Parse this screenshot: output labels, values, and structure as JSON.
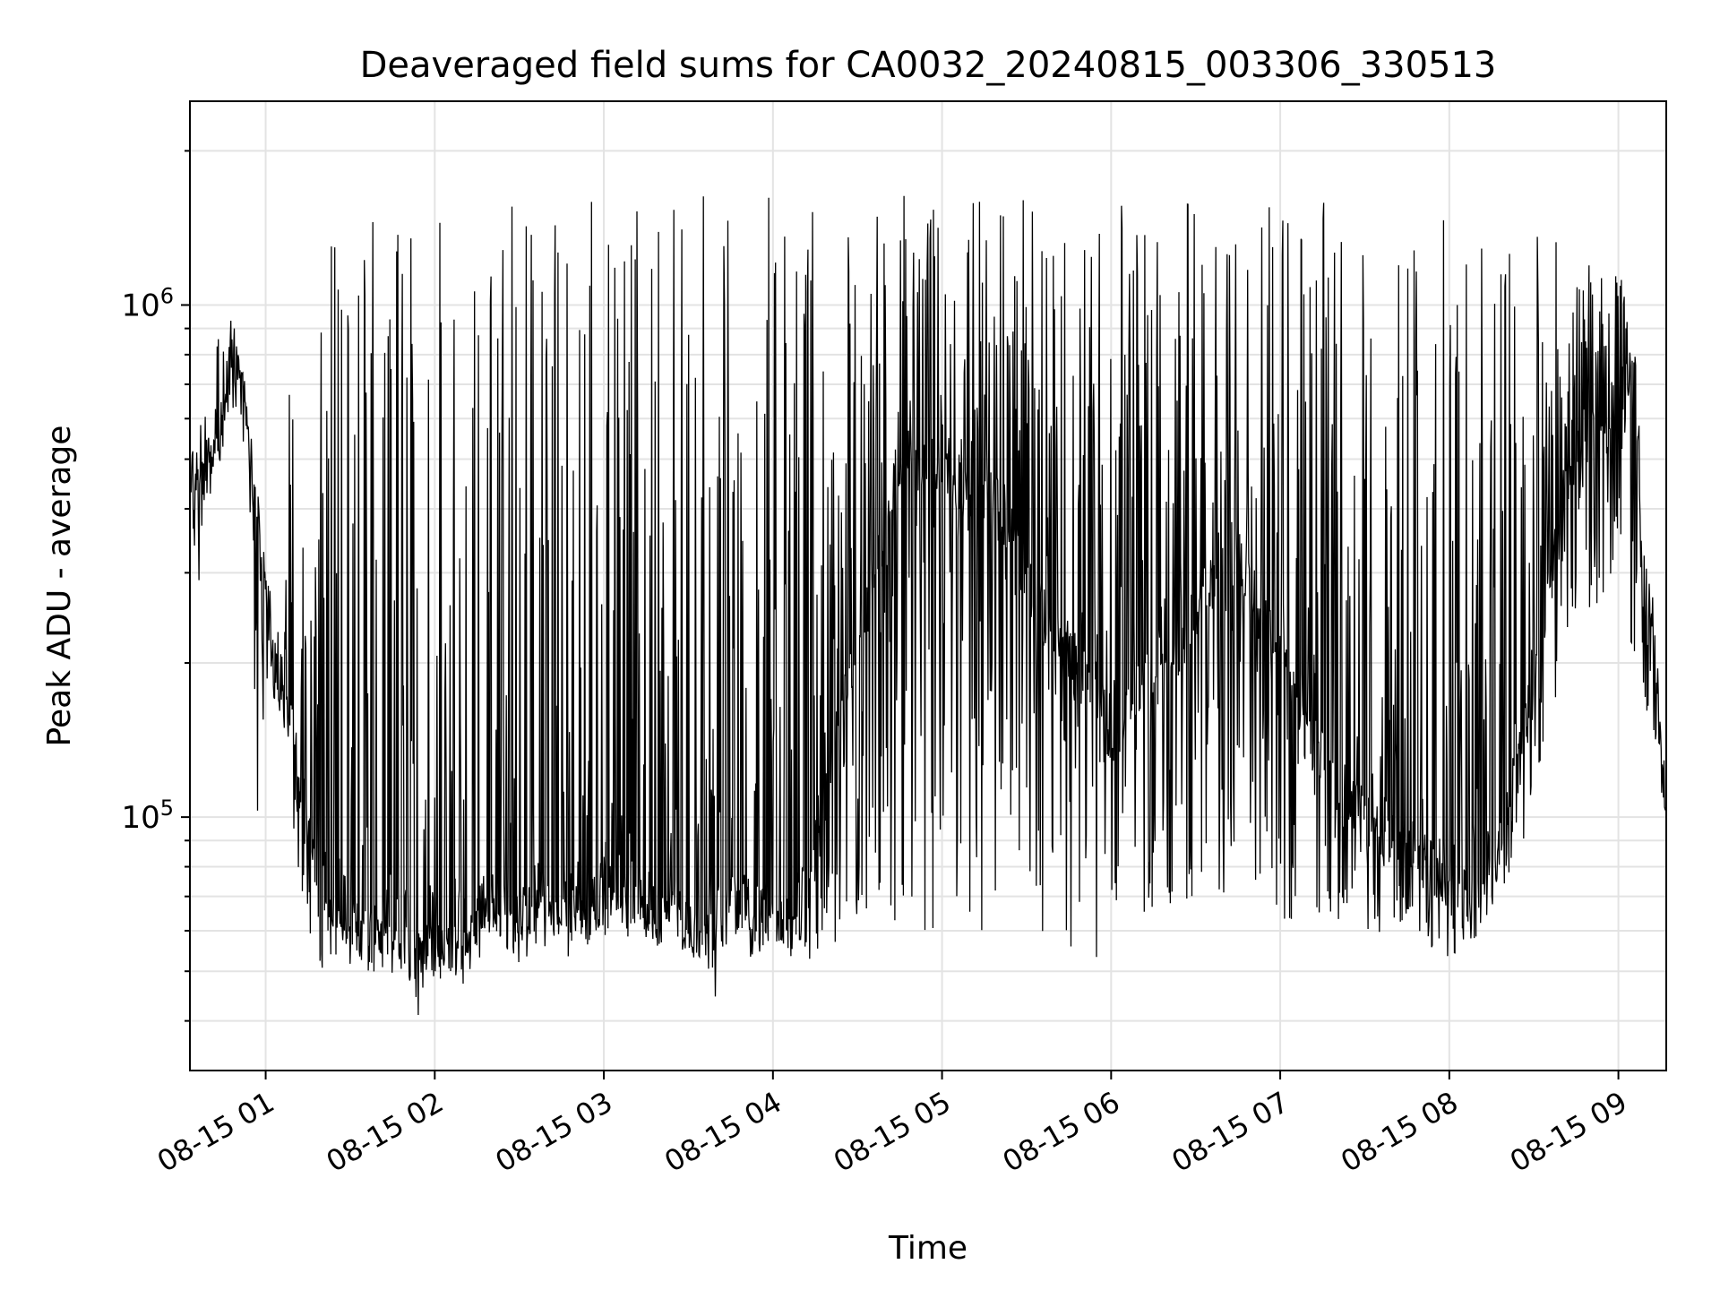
{
  "chart_data": {
    "type": "line",
    "title": "Deaveraged field sums for CA0032_20240815_003306_330513",
    "xlabel": "Time",
    "ylabel": "Peak ADU - average",
    "x_range": [
      "2024-08-15T00:33:06",
      "2024-08-15T09:17:00"
    ],
    "y_range": [
      32000,
      2500000
    ],
    "yscale": "log",
    "grid": true,
    "legend": "none",
    "line_color": "#000000",
    "x_ticks": [
      "08-15 01",
      "08-15 02",
      "08-15 03",
      "08-15 04",
      "08-15 05",
      "08-15 06",
      "08-15 07",
      "08-15 08",
      "08-15 09"
    ],
    "y_ticks": [
      {
        "value": 100000,
        "base": "10",
        "exp": "5"
      },
      {
        "value": 1000000,
        "base": "10",
        "exp": "6"
      }
    ],
    "series": [
      {
        "x_unit": "hour of 2024-08-15",
        "x": [
          0.552,
          0.6,
          0.65,
          0.7,
          0.75,
          0.8,
          0.85,
          0.9,
          0.95,
          1.0,
          1.05,
          1.1,
          1.15,
          1.2,
          1.25,
          1.3,
          1.35,
          1.4,
          1.45,
          1.5,
          1.55,
          1.6,
          1.65,
          1.7,
          1.75,
          1.8,
          1.85,
          1.9,
          1.95,
          2.0,
          2.05,
          2.1,
          2.15,
          2.2,
          2.25,
          2.3,
          2.4,
          2.5,
          2.6,
          2.7,
          2.8,
          2.9,
          3.0,
          3.1,
          3.2,
          3.3,
          3.4,
          3.5,
          3.6,
          3.7,
          3.8,
          3.9,
          4.0,
          4.1,
          4.2,
          4.3,
          4.4,
          4.5,
          4.6,
          4.7,
          4.8,
          4.9,
          5.0,
          5.1,
          5.2,
          5.3,
          5.4,
          5.5,
          5.6,
          5.7,
          5.8,
          5.9,
          6.0,
          6.1,
          6.2,
          6.3,
          6.4,
          6.5,
          6.6,
          6.7,
          6.8,
          6.9,
          7.0,
          7.1,
          7.2,
          7.3,
          7.4,
          7.5,
          7.6,
          7.7,
          7.8,
          7.9,
          8.0,
          8.1,
          8.2,
          8.3,
          8.4,
          8.5,
          8.6,
          8.7,
          8.8,
          8.9,
          9.0,
          9.05,
          9.1,
          9.15,
          9.2,
          9.283
        ],
        "values": [
          450000,
          420000,
          480000,
          520000,
          600000,
          850000,
          700000,
          550000,
          380000,
          280000,
          210000,
          190000,
          160000,
          120000,
          90000,
          75000,
          70000,
          68000,
          72000,
          65000,
          60000,
          62000,
          58000,
          65000,
          70000,
          62000,
          68000,
          60000,
          63000,
          66000,
          58000,
          64000,
          60000,
          62000,
          65000,
          68000,
          70000,
          65000,
          72000,
          68000,
          70000,
          66000,
          75000,
          70000,
          72000,
          68000,
          74000,
          62000,
          60000,
          65000,
          70000,
          64000,
          68000,
          62000,
          75000,
          110000,
          160000,
          220000,
          300000,
          420000,
          500000,
          480000,
          520000,
          450000,
          400000,
          420000,
          380000,
          300000,
          250000,
          220000,
          200000,
          180000,
          150000,
          160000,
          180000,
          200000,
          220000,
          260000,
          300000,
          350000,
          300000,
          240000,
          200000,
          160000,
          140000,
          120000,
          110000,
          100000,
          95000,
          90000,
          85000,
          80000,
          78000,
          75000,
          80000,
          90000,
          120000,
          200000,
          300000,
          450000,
          550000,
          600000,
          650000,
          700000,
          680000,
          250000,
          230000,
          100000
        ],
        "peaks": [
          500000,
          560000,
          650000,
          800000,
          1050000,
          950000,
          800000,
          620000,
          450000,
          320000,
          240000,
          220000,
          1000000,
          150000,
          1200000,
          1300000,
          1400000,
          1350000,
          1400000,
          1450000,
          1400000,
          1500000,
          1450000,
          1500000,
          1550000,
          1450000,
          1550000,
          1500000,
          2050000,
          1550000,
          1500000,
          1600000,
          1550000,
          1650000,
          1600000,
          1550000,
          1600000,
          1650000,
          1600000,
          1650000,
          1600000,
          1650000,
          1700000,
          1600000,
          1650000,
          1600000,
          1650000,
          1650000,
          1800000,
          1600000,
          1650000,
          1700000,
          1650000,
          1600000,
          1650000,
          1600000,
          1550000,
          1600000,
          1650000,
          1600000,
          1650000,
          1600000,
          1650000,
          1600000,
          1650000,
          1600000,
          1650000,
          1650000,
          1600000,
          1650000,
          1600000,
          1550000,
          1650000,
          1600000,
          1600000,
          1550000,
          1600000,
          1650000,
          1600000,
          1650000,
          1600000,
          1650000,
          1600000,
          1550000,
          1650000,
          1600000,
          1550000,
          1600000,
          1550000,
          1650000,
          1600000,
          1500000,
          1550000,
          1600000,
          1650000,
          1500000,
          1550000,
          1450000,
          1350000,
          1300000,
          1250000,
          1200000,
          1150000,
          1100000,
          900000,
          350000,
          300000,
          120000
        ],
        "troughs": [
          450000,
          250000,
          420000,
          500000,
          500000,
          600000,
          520000,
          480000,
          85000,
          180000,
          160000,
          150000,
          90000,
          70000,
          55000,
          52000,
          50000,
          48000,
          50000,
          46000,
          47000,
          45000,
          50000,
          48000,
          47000,
          49000,
          46000,
          40000,
          44000,
          48000,
          43000,
          50000,
          46000,
          48000,
          52000,
          55000,
          53000,
          52000,
          54000,
          56000,
          52000,
          55000,
          58000,
          54000,
          56000,
          55000,
          53000,
          55000,
          52000,
          40000,
          50000,
          55000,
          50000,
          60000,
          52000,
          55000,
          58000,
          62000,
          65000,
          60000,
          58000,
          56000,
          60000,
          55000,
          57000,
          60000,
          62000,
          55000,
          58000,
          60000,
          52000,
          50000,
          58000,
          62000,
          60000,
          65000,
          70000,
          68000,
          72000,
          70000,
          68000,
          62000,
          60000,
          63000,
          66000,
          62000,
          64000,
          60000,
          58000,
          56000,
          54000,
          52000,
          53000,
          55000,
          58000,
          70000,
          85000,
          100000,
          150000,
          200000,
          220000,
          260000,
          300000,
          240000,
          170000,
          150000,
          140000,
          100000
        ]
      }
    ]
  }
}
